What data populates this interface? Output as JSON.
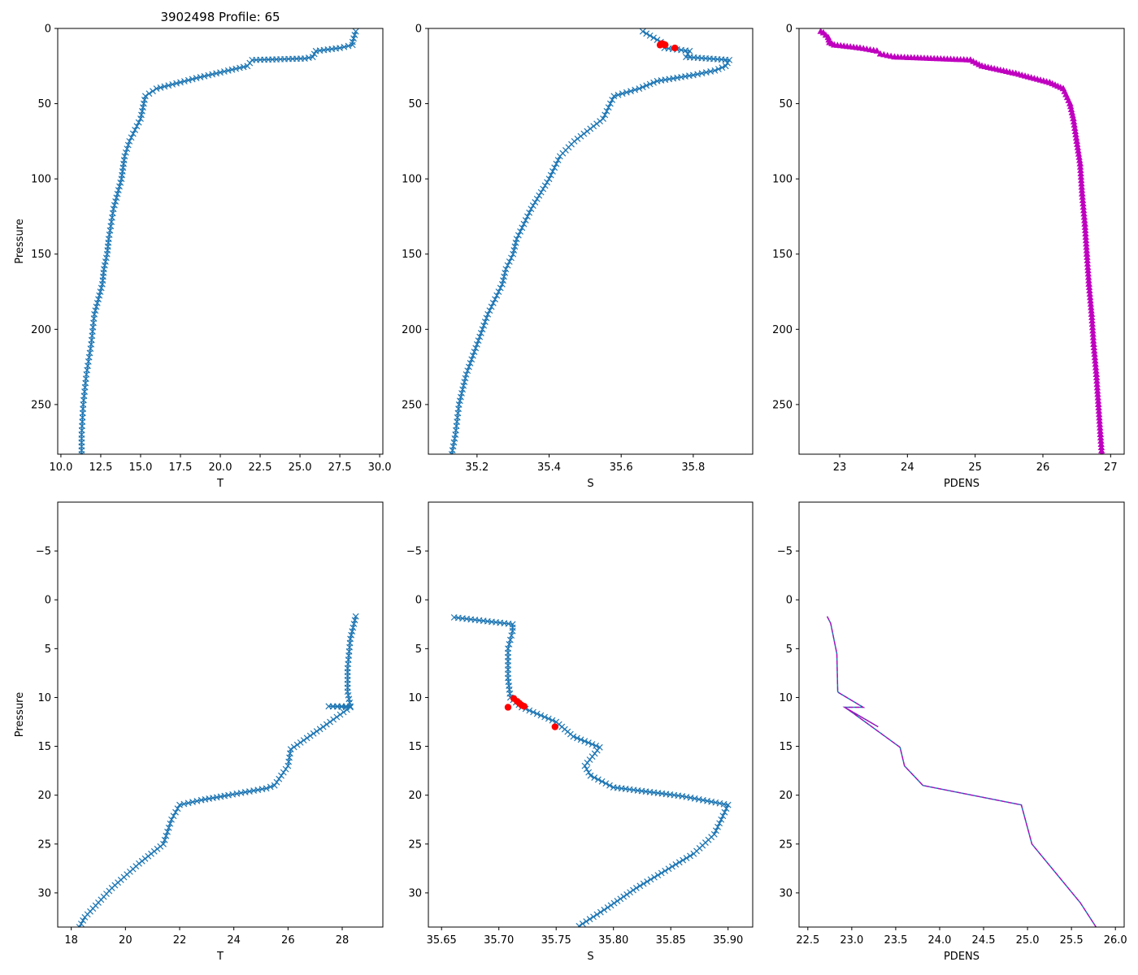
{
  "figure": {
    "title": "3902498 Profile: 65"
  },
  "colors": {
    "series": "#1f77b4",
    "flag": "#ff0000",
    "density": "#bf00bf",
    "density_dash": "#bf00bf"
  },
  "chart_data": [
    {
      "id": "top-temperature",
      "type": "line",
      "markers": "x",
      "title": "3902498 Profile: 65",
      "xlabel": "T",
      "ylabel": "Pressure",
      "xlim": [
        9.8,
        30.2
      ],
      "ylim": [
        283,
        0
      ],
      "yinverted": true,
      "xticks": [
        10.0,
        12.5,
        15.0,
        17.5,
        20.0,
        22.5,
        25.0,
        27.5,
        30.0
      ],
      "xtick_labels": [
        "10.0",
        "12.5",
        "15.0",
        "17.5",
        "20.0",
        "22.5",
        "25.0",
        "27.5",
        "30.0"
      ],
      "yticks": [
        0,
        50,
        100,
        150,
        200,
        250
      ],
      "ytick_labels": [
        "0",
        "50",
        "100",
        "150",
        "200",
        "250"
      ],
      "series": [
        {
          "name": "T",
          "x": [
            28.5,
            28.3,
            28.3,
            27.5,
            26.0,
            25.8,
            25.3,
            22.0,
            21.7,
            20.5,
            18.5,
            16.0,
            15.3,
            15.0,
            14.3,
            14.0,
            13.8,
            13.3,
            13.0,
            12.9,
            12.7,
            12.6,
            12.1,
            11.9,
            11.6,
            11.4,
            11.3,
            11.3
          ],
          "y": [
            2,
            9,
            11,
            13,
            15,
            19,
            20,
            21,
            25,
            28,
            33,
            40,
            45,
            60,
            75,
            85,
            100,
            120,
            140,
            150,
            160,
            170,
            190,
            210,
            230,
            250,
            270,
            283
          ]
        }
      ],
      "flags": []
    },
    {
      "id": "top-salinity",
      "type": "line",
      "markers": "x",
      "title": "",
      "xlabel": "S",
      "ylabel": "",
      "xlim": [
        35.065,
        35.965
      ],
      "ylim": [
        283,
        0
      ],
      "yinverted": true,
      "xticks": [
        35.2,
        35.4,
        35.6,
        35.8
      ],
      "xtick_labels": [
        "35.2",
        "35.4",
        "35.6",
        "35.8"
      ],
      "yticks": [
        0,
        50,
        100,
        150,
        200,
        250
      ],
      "ytick_labels": [
        "0",
        "50",
        "100",
        "150",
        "200",
        "250"
      ],
      "series": [
        {
          "name": "S",
          "x": [
            35.66,
            35.71,
            35.71,
            35.72,
            35.79,
            35.78,
            35.9,
            35.89,
            35.86,
            35.8,
            35.7,
            35.65,
            35.58,
            35.55,
            35.47,
            35.43,
            35.4,
            35.35,
            35.31,
            35.3,
            35.28,
            35.27,
            35.23,
            35.2,
            35.17,
            35.15,
            35.14,
            35.13
          ],
          "y": [
            2,
            9,
            11,
            13,
            15,
            19,
            21,
            25,
            28,
            31,
            35,
            40,
            45,
            60,
            75,
            85,
            100,
            120,
            140,
            150,
            160,
            170,
            190,
            210,
            230,
            250,
            270,
            283
          ]
        }
      ],
      "flags": [
        {
          "x": [
            35.708,
            35.713,
            35.716,
            35.718,
            35.72,
            35.722,
            35.749
          ],
          "y": [
            11,
            10.1,
            10.4,
            10.6,
            10.8,
            10.9,
            13
          ]
        }
      ]
    },
    {
      "id": "top-density",
      "type": "scatter",
      "markers": "triangle",
      "title": "",
      "xlabel": "PDENS",
      "ylabel": "",
      "xlim": [
        22.4,
        27.2
      ],
      "ylim": [
        283,
        0
      ],
      "yinverted": true,
      "xticks": [
        23,
        24,
        25,
        26,
        27
      ],
      "xtick_labels": [
        "23",
        "24",
        "25",
        "26",
        "27"
      ],
      "yticks": [
        0,
        50,
        100,
        150,
        200,
        250
      ],
      "ytick_labels": [
        "0",
        "50",
        "100",
        "150",
        "200",
        "250"
      ],
      "series": [
        {
          "name": "PDENS",
          "x": [
            22.72,
            22.76,
            22.83,
            22.85,
            22.92,
            23.3,
            23.55,
            23.6,
            23.81,
            24.93,
            25.1,
            25.6,
            26.1,
            26.3,
            26.4,
            26.45,
            26.5,
            26.55,
            26.58,
            26.62,
            26.65,
            26.68,
            26.72,
            26.75,
            26.79,
            26.82,
            26.85,
            26.87
          ],
          "y": [
            2,
            3,
            6,
            9.4,
            11,
            13,
            15,
            17,
            19,
            21,
            25,
            30,
            36,
            40,
            50,
            60,
            75,
            90,
            110,
            130,
            150,
            170,
            190,
            210,
            230,
            250,
            270,
            283
          ]
        }
      ],
      "flags": []
    },
    {
      "id": "bottom-temperature",
      "type": "line",
      "markers": "x",
      "title": "",
      "xlabel": "T",
      "ylabel": "Pressure",
      "xlim": [
        17.5,
        29.5
      ],
      "ylim": [
        33.5,
        -10
      ],
      "yinverted": true,
      "xticks": [
        18,
        20,
        22,
        24,
        26,
        28
      ],
      "xtick_labels": [
        "18",
        "20",
        "22",
        "24",
        "26",
        "28"
      ],
      "yticks": [
        -5,
        0,
        5,
        10,
        15,
        20,
        25,
        30
      ],
      "ytick_labels": [
        "−5",
        "0",
        "5",
        "10",
        "15",
        "20",
        "25",
        "30"
      ],
      "series": [
        {
          "name": "T",
          "x": [
            28.5,
            28.3,
            28.2,
            28.2,
            28.3,
            27.5,
            28.3,
            27.3,
            26.1,
            26.0,
            25.5,
            25.2,
            23.8,
            22.8,
            22.0,
            21.7,
            21.4,
            20.5,
            19.5,
            18.5,
            18.3
          ],
          "y": [
            1.7,
            4.0,
            7.0,
            9.4,
            10.9,
            10.9,
            11.0,
            13.0,
            15.3,
            17.0,
            19.0,
            19.3,
            20.0,
            20.5,
            21.0,
            22.5,
            25.0,
            27.0,
            29.5,
            32.5,
            33.5
          ]
        }
      ],
      "flags": []
    },
    {
      "id": "bottom-salinity",
      "type": "line",
      "markers": "x",
      "title": "",
      "xlabel": "S",
      "ylabel": "",
      "xlim": [
        35.6385,
        35.9215
      ],
      "ylim": [
        33.5,
        -10
      ],
      "yinverted": true,
      "xticks": [
        35.65,
        35.7,
        35.75,
        35.8,
        35.85,
        35.9
      ],
      "xtick_labels": [
        "35.65",
        "35.70",
        "35.75",
        "35.80",
        "35.85",
        "35.90"
      ],
      "yticks": [
        -5,
        0,
        5,
        10,
        15,
        20,
        25,
        30
      ],
      "ytick_labels": [
        "−5",
        "0",
        "5",
        "10",
        "15",
        "20",
        "25",
        "30"
      ],
      "series": [
        {
          "name": "S",
          "x": [
            35.661,
            35.712,
            35.712,
            35.708,
            35.708,
            35.71,
            35.72,
            35.75,
            35.765,
            35.788,
            35.775,
            35.78,
            35.8,
            35.86,
            35.9,
            35.888,
            35.87,
            35.82,
            35.795,
            35.77
          ],
          "y": [
            1.8,
            2.5,
            3.2,
            5.0,
            8.0,
            10.0,
            11.0,
            12.5,
            14.0,
            15.1,
            17.0,
            18.0,
            19.2,
            20.1,
            21.0,
            24.0,
            26.0,
            29.5,
            31.5,
            33.4
          ]
        }
      ],
      "flags": [
        {
          "x": [
            35.708,
            35.713,
            35.716,
            35.718,
            35.72,
            35.722,
            35.749
          ],
          "y": [
            11.0,
            10.1,
            10.4,
            10.6,
            10.8,
            10.9,
            13.0
          ]
        }
      ]
    },
    {
      "id": "bottom-density",
      "type": "line",
      "markers": "none",
      "title": "",
      "xlabel": "PDENS",
      "ylabel": "",
      "xlim": [
        22.4,
        26.1
      ],
      "ylim": [
        33.5,
        -10
      ],
      "yinverted": true,
      "xticks": [
        22.5,
        23.0,
        23.5,
        24.0,
        24.5,
        25.0,
        25.5,
        26.0
      ],
      "xtick_labels": [
        "22.5",
        "23.0",
        "23.5",
        "24.0",
        "24.5",
        "25.0",
        "25.5",
        "26.0"
      ],
      "yticks": [
        -5,
        0,
        5,
        10,
        15,
        20,
        25,
        30
      ],
      "ytick_labels": [
        "−5",
        "0",
        "5",
        "10",
        "15",
        "20",
        "25",
        "30"
      ],
      "series": [
        {
          "name": "PDENS",
          "x": [
            22.72,
            22.76,
            22.83,
            22.84,
            22.85,
            23.13,
            22.92,
            23.3,
            22.92,
            23.0,
            23.55,
            23.6,
            23.81,
            24.93,
            25.05,
            25.6,
            25.78
          ],
          "y": [
            1.7,
            2.4,
            5.5,
            9.4,
            9.5,
            11.0,
            11.0,
            13.0,
            11.0,
            11.5,
            15.1,
            17.0,
            19.0,
            21.0,
            25.0,
            31.0,
            33.5
          ]
        }
      ],
      "flags": [],
      "overlay_dashed": true
    }
  ]
}
